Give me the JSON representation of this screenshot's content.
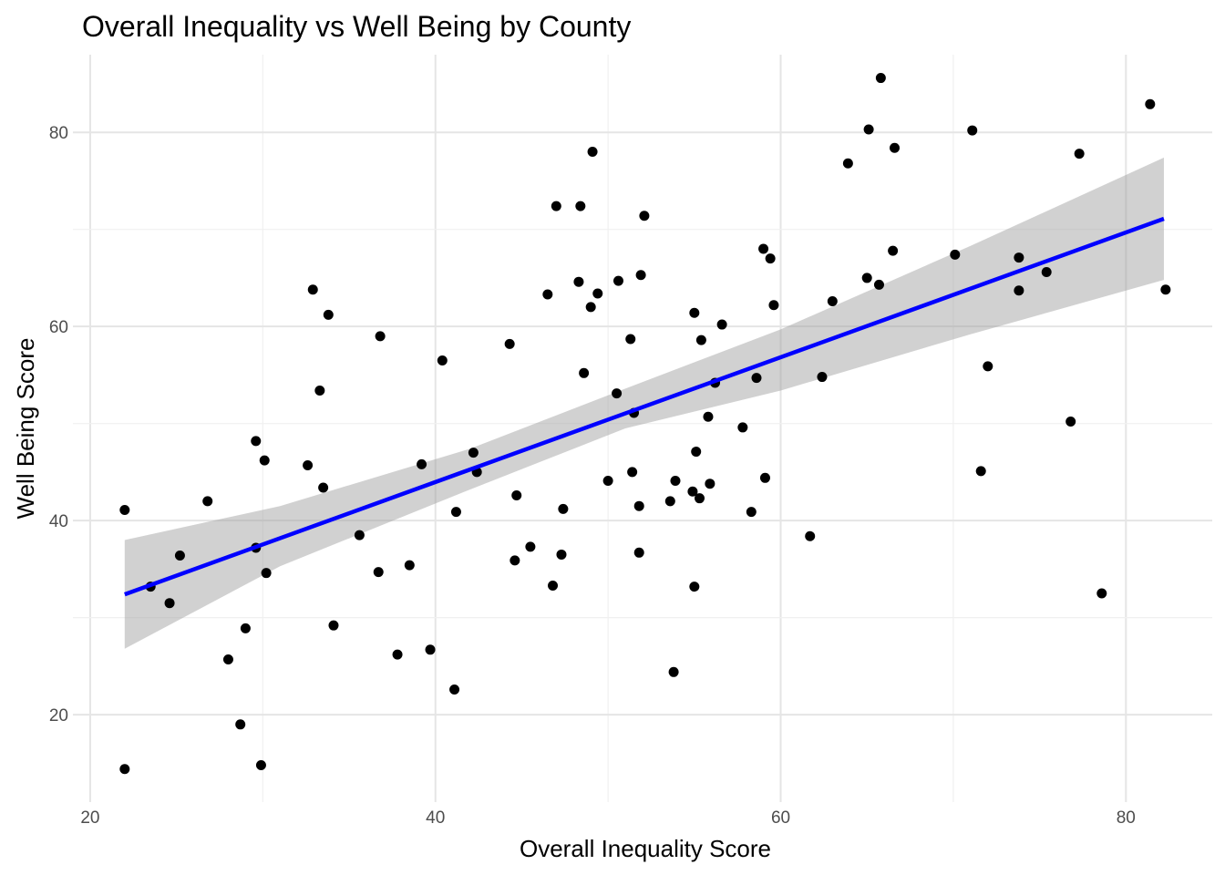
{
  "chart_data": {
    "type": "scatter",
    "title": "Overall Inequality vs Well Being by County",
    "xlabel": "Overall Inequality Score",
    "ylabel": "Well Being Score",
    "xlim": [
      19,
      85
    ],
    "ylim": [
      11,
      88
    ],
    "x_ticks": [
      20,
      40,
      60,
      80
    ],
    "y_ticks": [
      20,
      40,
      60,
      80
    ],
    "grid": true,
    "colors": {
      "points": "#000000",
      "fit_line": "#0000ff",
      "band": "#999999"
    },
    "fit": {
      "x": [
        22,
        82.2
      ],
      "y": [
        32.4,
        71.1
      ]
    },
    "confidence_band": {
      "x": [
        22,
        31,
        42,
        51,
        60,
        71,
        82.2
      ],
      "lower": [
        26.8,
        35.3,
        43.2,
        49.5,
        53.4,
        59.2,
        64.8
      ],
      "upper": [
        38.0,
        41.5,
        47.4,
        53.6,
        59.7,
        68.3,
        77.4
      ]
    },
    "points": {
      "x": [
        22.0,
        22.0,
        23.5,
        24.6,
        25.2,
        26.8,
        28.0,
        28.7,
        29.0,
        29.6,
        29.6,
        29.9,
        30.1,
        30.2,
        32.6,
        32.9,
        33.3,
        33.5,
        33.8,
        34.1,
        35.6,
        36.7,
        36.8,
        37.8,
        38.5,
        39.2,
        39.7,
        40.4,
        41.1,
        41.2,
        42.2,
        42.4,
        44.3,
        44.6,
        44.7,
        45.5,
        46.5,
        46.8,
        47.0,
        47.3,
        47.4,
        48.3,
        48.4,
        48.6,
        49.0,
        49.1,
        49.4,
        50.0,
        50.5,
        50.6,
        51.3,
        51.4,
        51.5,
        51.8,
        51.8,
        51.9,
        52.1,
        53.6,
        53.8,
        53.9,
        54.9,
        55.0,
        55.0,
        55.1,
        55.3,
        55.4,
        55.8,
        55.9,
        56.2,
        56.6,
        57.8,
        58.3,
        58.6,
        59.0,
        59.1,
        59.4,
        59.6,
        61.7,
        62.4,
        63.0,
        63.9,
        65.0,
        65.1,
        65.7,
        65.8,
        66.5,
        66.6,
        70.1,
        71.1,
        71.6,
        72.0,
        73.8,
        73.8,
        75.4,
        76.8,
        77.3,
        78.6,
        81.4,
        82.3
      ],
      "y": [
        41.1,
        14.4,
        33.2,
        31.5,
        36.4,
        42.0,
        25.7,
        19.0,
        28.9,
        48.2,
        37.2,
        14.8,
        46.2,
        34.6,
        45.7,
        63.8,
        53.4,
        43.4,
        61.2,
        29.2,
        38.5,
        34.7,
        59.0,
        26.2,
        35.4,
        45.8,
        26.7,
        56.5,
        22.6,
        40.9,
        47.0,
        45.0,
        58.2,
        35.9,
        42.6,
        37.3,
        63.3,
        33.3,
        72.4,
        36.5,
        41.2,
        64.6,
        72.4,
        55.2,
        62.0,
        78.0,
        63.4,
        44.1,
        53.1,
        64.7,
        58.7,
        45.0,
        51.1,
        41.5,
        36.7,
        65.3,
        71.4,
        42.0,
        24.4,
        44.1,
        43.0,
        61.4,
        33.2,
        47.1,
        42.3,
        58.6,
        50.7,
        43.8,
        54.2,
        60.2,
        49.6,
        40.9,
        54.7,
        68.0,
        44.4,
        67.0,
        62.2,
        38.4,
        54.8,
        62.6,
        76.8,
        65.0,
        80.3,
        64.3,
        85.6,
        67.8,
        78.4,
        67.4,
        80.2,
        45.1,
        55.9,
        63.7,
        67.1,
        65.6,
        50.2,
        77.8,
        32.5,
        82.9,
        63.8
      ]
    }
  }
}
